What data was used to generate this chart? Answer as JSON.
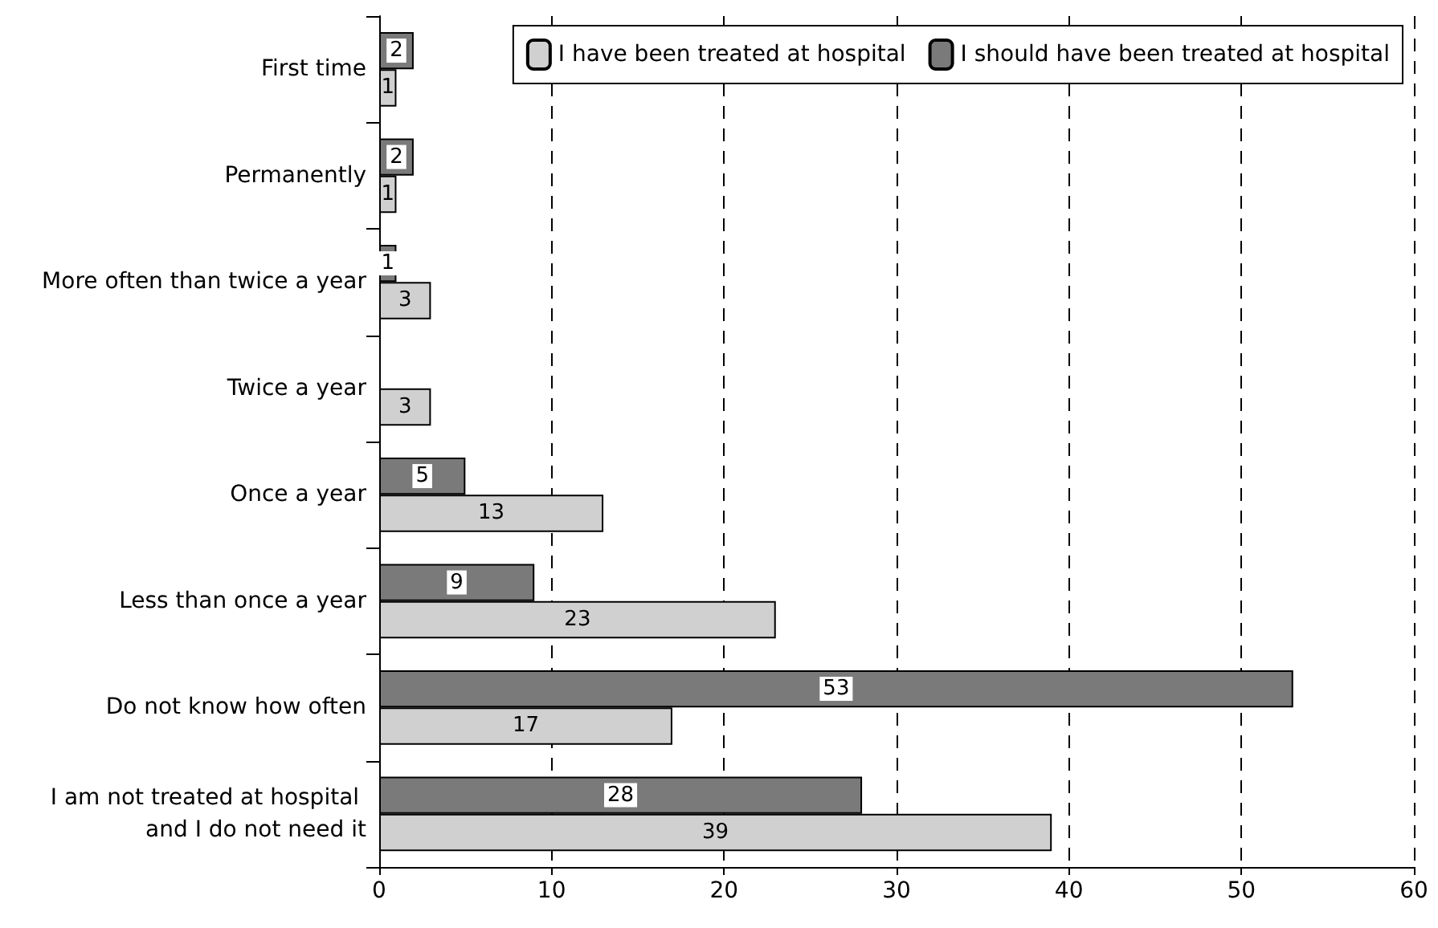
{
  "chart_data": {
    "type": "bar",
    "orientation": "horizontal",
    "categories": [
      "First time",
      "Permanently",
      "More often than twice a year",
      "Twice a year",
      "Once a year",
      "Less than once a year",
      "Do not know how often",
      "I am not treated at hospital and I do not need it"
    ],
    "series": [
      {
        "name": "I have been treated at hospital",
        "color": "#d0d0d0",
        "values": [
          1,
          1,
          3,
          3,
          13,
          23,
          17,
          39
        ]
      },
      {
        "name": "I should have been treated at hospital",
        "color": "#7a7a7a",
        "values": [
          2,
          2,
          1,
          null,
          5,
          9,
          53,
          28
        ]
      }
    ],
    "xlim": [
      0,
      60
    ],
    "xticks": [
      0,
      10,
      20,
      30,
      40,
      50,
      60
    ],
    "grid": "x",
    "legend": "top right",
    "data_labels": true
  }
}
